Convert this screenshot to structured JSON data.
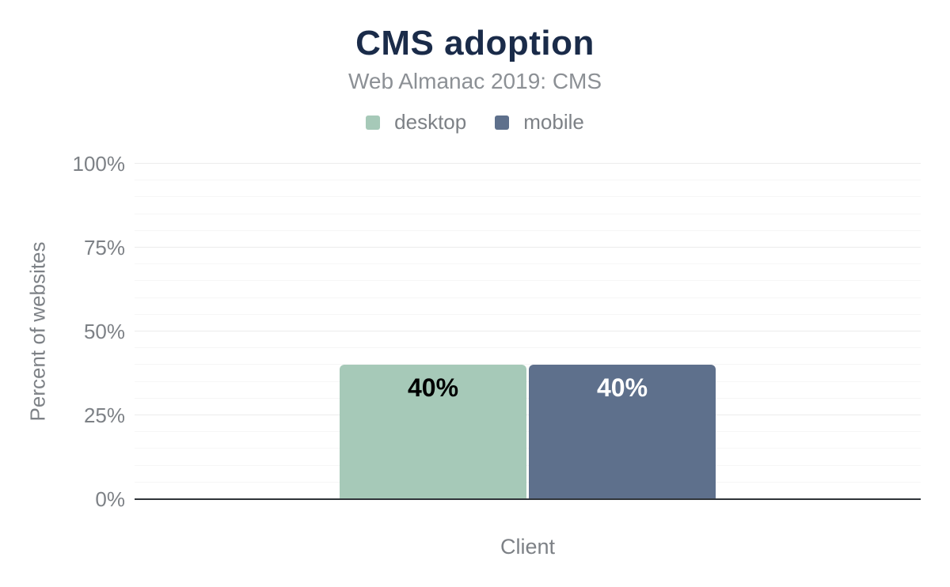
{
  "chart_data": {
    "type": "bar",
    "title": "CMS adoption",
    "subtitle": "Web Almanac 2019: CMS",
    "xlabel": "Client",
    "ylabel": "Percent of websites",
    "categories": [
      "Client"
    ],
    "series": [
      {
        "name": "desktop",
        "values": [
          40
        ],
        "value_labels": [
          "40%"
        ],
        "color": "#a6c9b8",
        "value_label_color": "#000000"
      },
      {
        "name": "mobile",
        "values": [
          40
        ],
        "value_labels": [
          "40%"
        ],
        "color": "#5e708c",
        "value_label_color": "#ffffff"
      }
    ],
    "ylim": [
      0,
      100
    ],
    "y_tick_values": [
      0,
      25,
      50,
      75,
      100
    ],
    "y_tick_labels": [
      "0%",
      "25%",
      "50%",
      "75%",
      "100%"
    ],
    "y_minor_grid_step": 5,
    "y_major_grid_step": 25,
    "grid": "horizontal minor+major, x grid off",
    "legend_position": "top center"
  },
  "style_colors": {
    "title": "#1a2b49",
    "subtitle": "#8c9095",
    "axis_text": "#7d8186",
    "axis_line": "#2f3439",
    "grid_minor": "#f6f6f6",
    "grid_major": "#ececec",
    "background": "#ffffff"
  }
}
